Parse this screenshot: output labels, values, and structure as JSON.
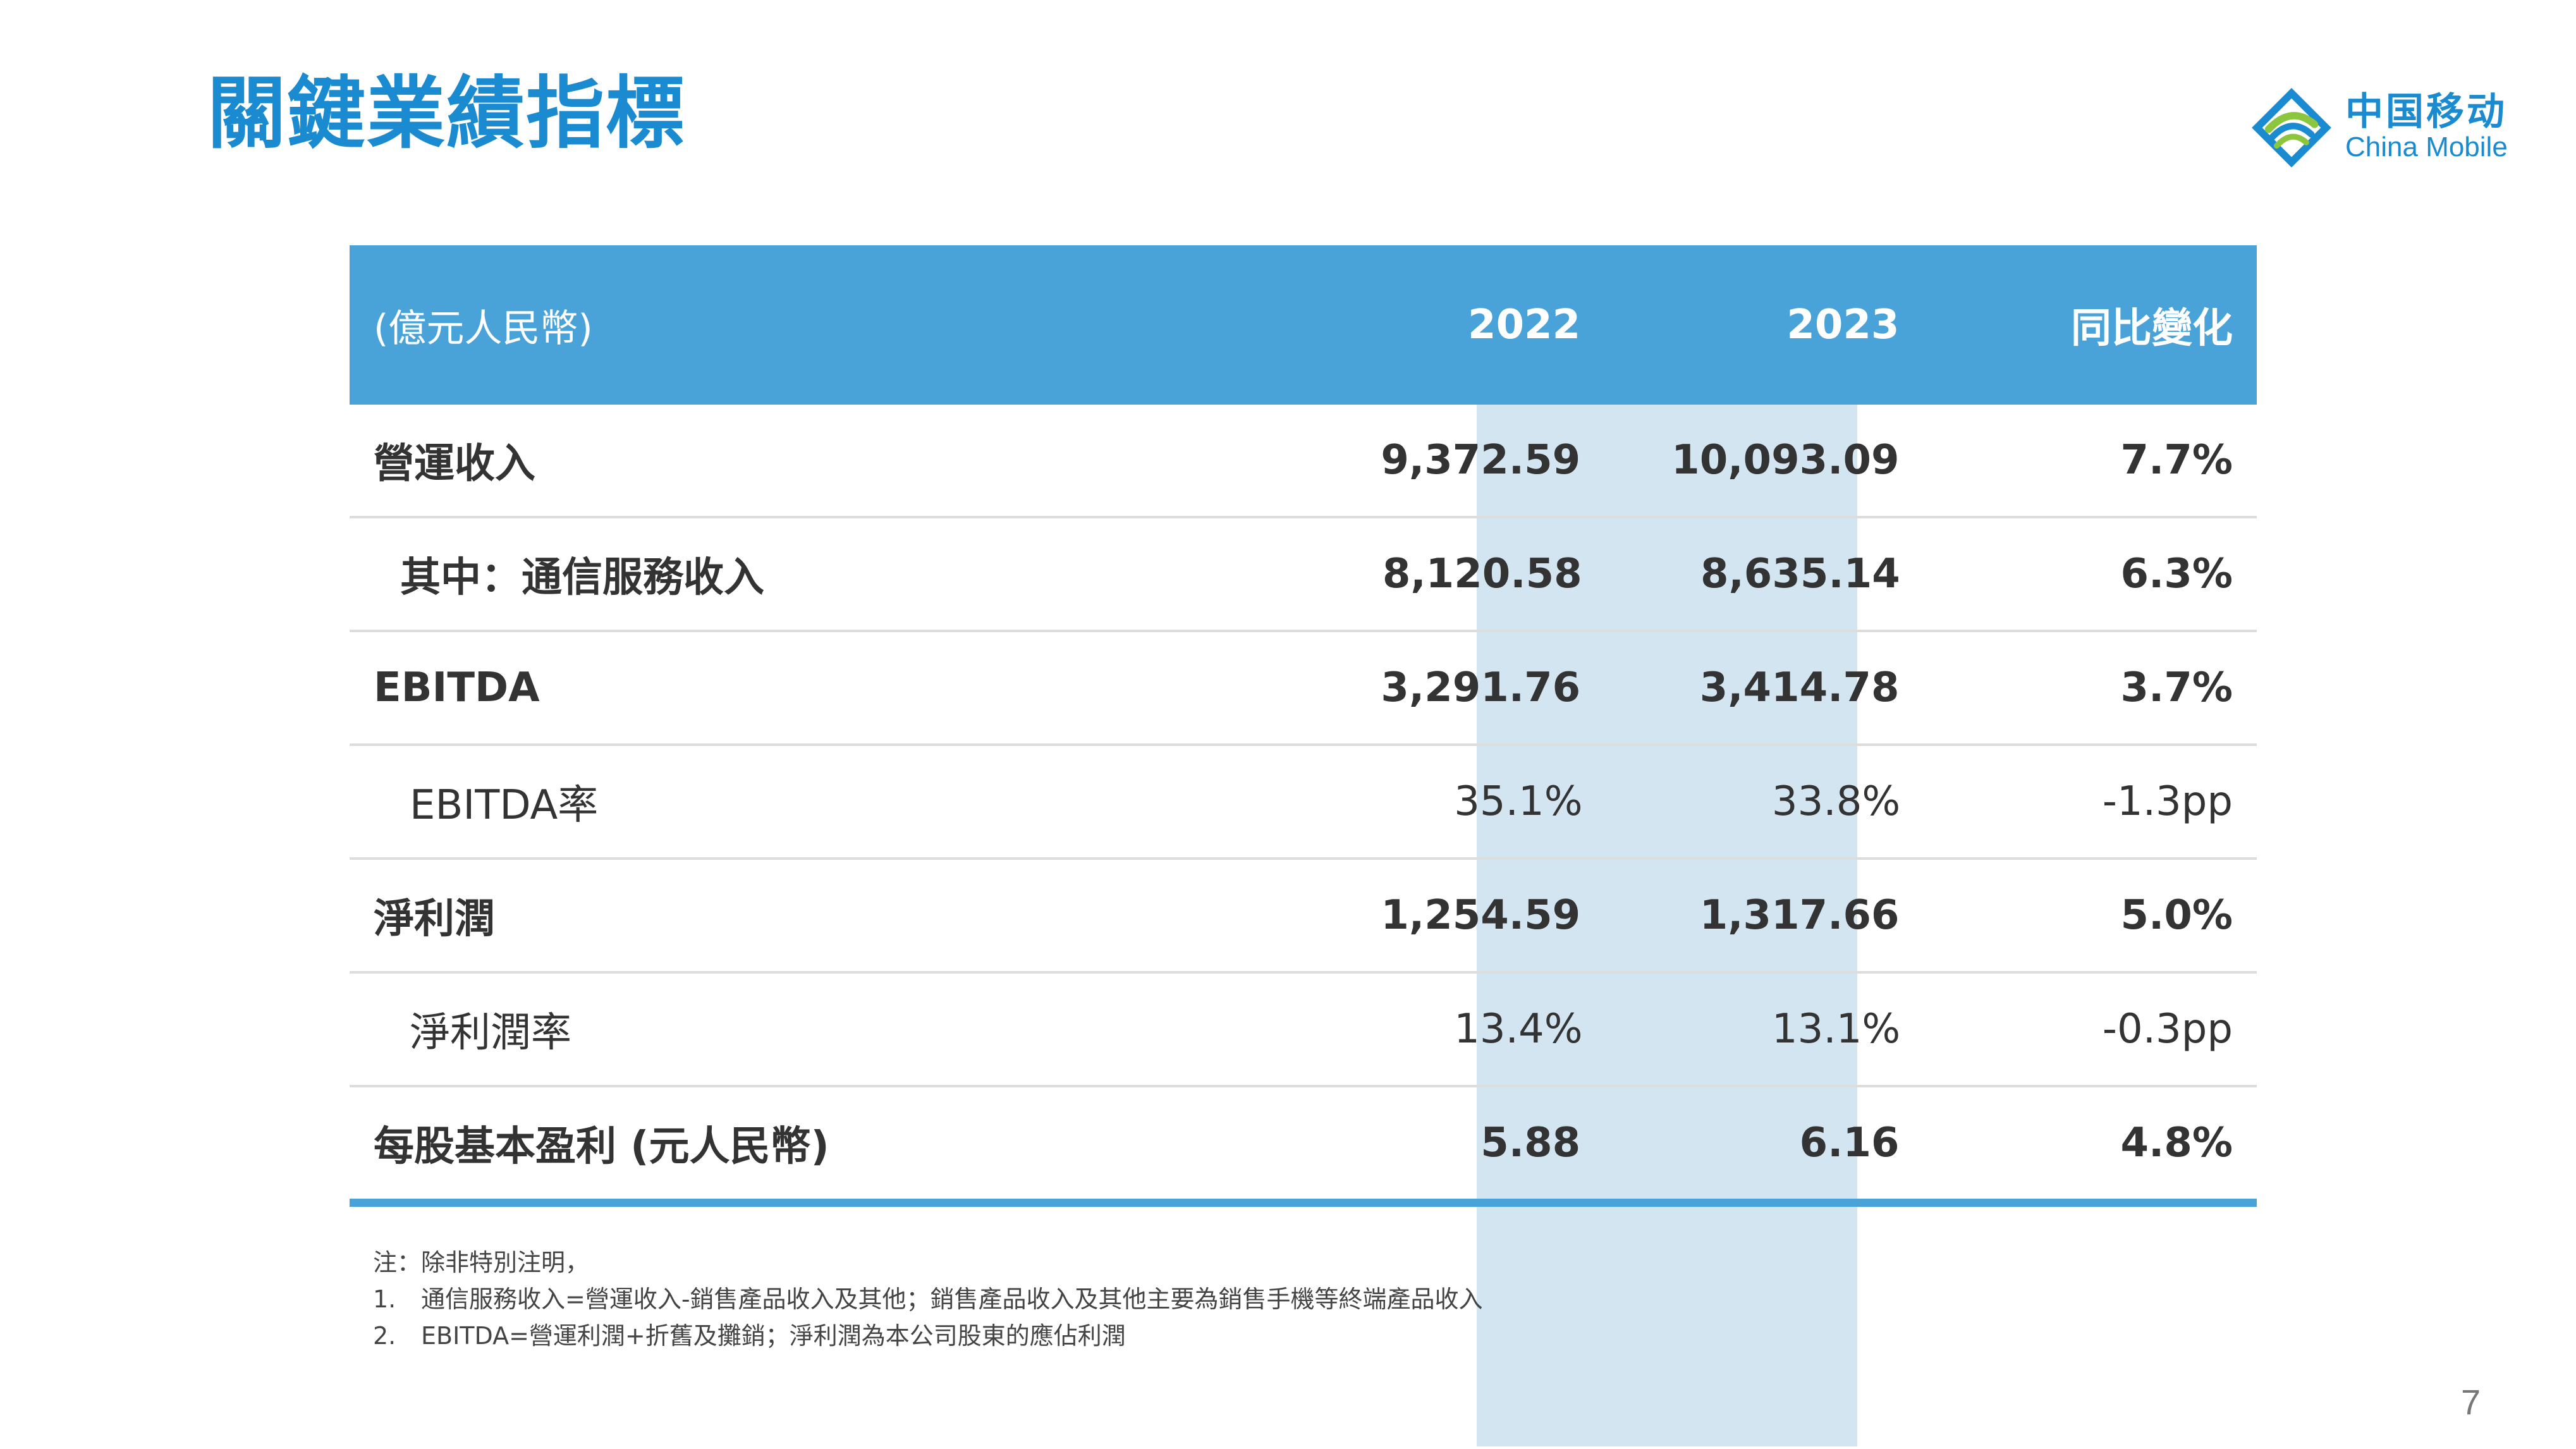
{
  "title": "關鍵業績指標",
  "logo": {
    "icon": "china-mobile-logo",
    "cn": "中国移动",
    "en": "China Mobile",
    "colors": [
      "#1a8bd0",
      "#8cc63f"
    ]
  },
  "table": {
    "header": {
      "unit": "(億元人民幣)",
      "col2022": "2022",
      "col2023": "2023",
      "change": "同比變化"
    },
    "rows": [
      {
        "label": "營運收入",
        "v2022": "9,372.59",
        "v2023": "10,093.09",
        "change": "7.7%"
      },
      {
        "label": "其中：通信服務收入",
        "v2022": "8,120.58",
        "v2023": "8,635.14",
        "change": "6.3%"
      },
      {
        "label": "EBITDA",
        "v2022": "3,291.76",
        "v2023": "3,414.78",
        "change": "3.7%"
      },
      {
        "label": "EBITDA率",
        "v2022": "35.1%",
        "v2023": "33.8%",
        "change": "-1.3pp"
      },
      {
        "label": "淨利潤",
        "v2022": "1,254.59",
        "v2023": "1,317.66",
        "change": "5.0%"
      },
      {
        "label": "淨利潤率",
        "v2022": "13.4%",
        "v2023": "13.1%",
        "change": "-0.3pp"
      },
      {
        "label": "每股基本盈利 (元人民幣)",
        "v2022": "5.88",
        "v2023": "6.16",
        "change": "4.8%"
      }
    ]
  },
  "notes": {
    "intro": "注：除非特別注明，",
    "items": [
      {
        "num": "1.",
        "text": "通信服務收入=營運收入-銷售產品收入及其他；銷售產品收入及其他主要為銷售手機等終端產品收入"
      },
      {
        "num": "2.",
        "text": "EBITDA=營運利潤+折舊及攤銷；淨利潤為本公司股東的應佔利潤"
      }
    ]
  },
  "page_number": "7",
  "colors": {
    "brand_blue": "#1a8bd0",
    "header_bg": "#4aa3d8",
    "highlight_col": "#d2e5f1"
  }
}
